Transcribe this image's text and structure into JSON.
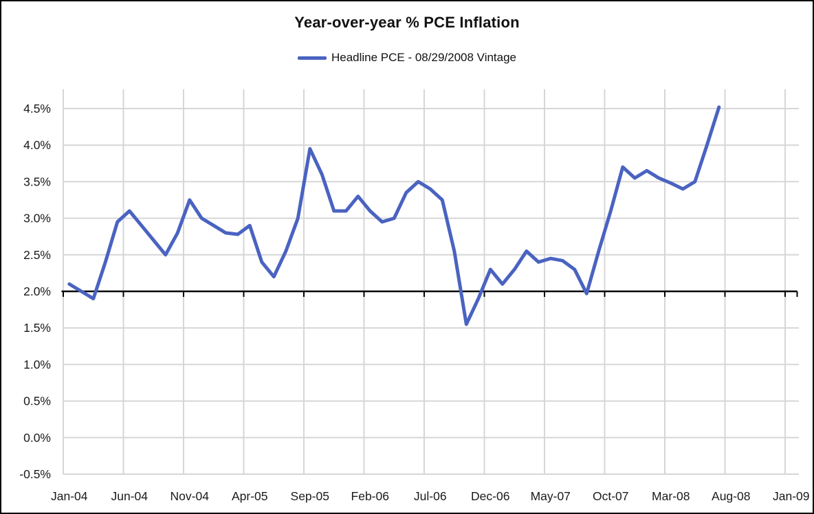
{
  "chart_data": {
    "type": "line",
    "title": "Year-over-year % PCE Inflation",
    "legend": "Headline PCE - 08/29/2008 Vintage",
    "xlabel": "",
    "ylabel": "",
    "ylim": [
      -0.5,
      4.75
    ],
    "grid": true,
    "legend_position": "top-center",
    "axis_crosses_at": 2.0,
    "y_tick_labels": [
      "4.5%",
      "4.0%",
      "3.5%",
      "3.0%",
      "2.5%",
      "2.0%",
      "1.5%",
      "1.0%",
      "0.5%",
      "0.0%",
      "-0.5%"
    ],
    "y_tick_values": [
      4.5,
      4.0,
      3.5,
      3.0,
      2.5,
      2.0,
      1.5,
      1.0,
      0.5,
      0.0,
      -0.5
    ],
    "x_tick_labels": [
      "Jan-04",
      "Jun-04",
      "Nov-04",
      "Apr-05",
      "Sep-05",
      "Feb-06",
      "Jul-06",
      "Dec-06",
      "May-07",
      "Oct-07",
      "Mar-08",
      "Aug-08",
      "Jan-09"
    ],
    "colors": {
      "line": "#4A63C1",
      "grid": "#D6D6D6",
      "axis": "#000000",
      "text": "#1A1A1A",
      "background": "#FFFFFF"
    },
    "series": [
      {
        "name": "Headline PCE - 08/29/2008 Vintage",
        "color": "#4A63C1",
        "months": [
          "Jan-04",
          "Feb-04",
          "Mar-04",
          "Apr-04",
          "May-04",
          "Jun-04",
          "Jul-04",
          "Aug-04",
          "Sep-04",
          "Oct-04",
          "Nov-04",
          "Dec-04",
          "Jan-05",
          "Feb-05",
          "Mar-05",
          "Apr-05",
          "May-05",
          "Jun-05",
          "Jul-05",
          "Aug-05",
          "Sep-05",
          "Oct-05",
          "Nov-05",
          "Dec-05",
          "Jan-06",
          "Feb-06",
          "Mar-06",
          "Apr-06",
          "May-06",
          "Jun-06",
          "Jul-06",
          "Aug-06",
          "Sep-06",
          "Oct-06",
          "Nov-06",
          "Dec-06",
          "Jan-07",
          "Feb-07",
          "Mar-07",
          "Apr-07",
          "May-07",
          "Jun-07",
          "Jul-07",
          "Aug-07",
          "Sep-07",
          "Oct-07",
          "Nov-07",
          "Dec-07",
          "Jan-08",
          "Feb-08",
          "Mar-08",
          "Apr-08",
          "May-08",
          "Jun-08",
          "Jul-08"
        ],
        "values": [
          2.1,
          2.0,
          1.9,
          2.4,
          2.95,
          3.1,
          2.9,
          2.7,
          2.5,
          2.8,
          3.25,
          3.0,
          2.9,
          2.8,
          2.78,
          2.9,
          2.4,
          2.2,
          2.55,
          3.0,
          3.95,
          3.6,
          3.1,
          3.1,
          3.3,
          3.1,
          2.95,
          3.0,
          3.35,
          3.5,
          3.4,
          3.25,
          2.55,
          1.55,
          1.9,
          2.3,
          2.1,
          2.3,
          2.55,
          2.4,
          2.45,
          2.42,
          2.3,
          1.97,
          2.55,
          3.1,
          3.7,
          3.55,
          3.65,
          3.55,
          3.48,
          3.4,
          3.5,
          4.0,
          4.52
        ]
      }
    ]
  }
}
